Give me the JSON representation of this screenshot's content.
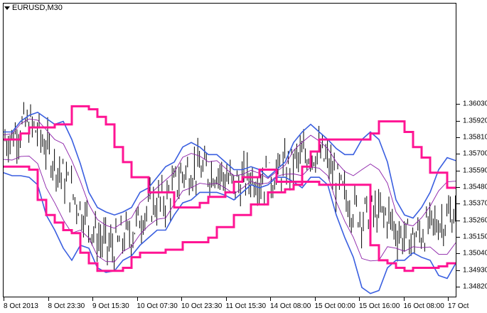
{
  "window": {
    "symbol_label": "EURUSD,M30"
  },
  "chart_data": {
    "type": "line",
    "title": "EURUSD,M30",
    "symbol": "EURUSD",
    "timeframe": "M30",
    "ylim": [
      1.3475,
      1.367
    ],
    "price_ticks": [
      "1.36030",
      "1.35920",
      "1.35810",
      "1.35700",
      "1.35590",
      "1.35480",
      "1.35370",
      "1.35260",
      "1.35150",
      "1.35040",
      "1.34930",
      "1.34820"
    ],
    "time_ticks": [
      "8 Oct 2013",
      "8 Oct 23:30",
      "9 Oct 15:30",
      "10 Oct 07:30",
      "10 Oct 23:30",
      "11 Oct 15:30",
      "14 Oct 08:00",
      "15 Oct 00:00",
      "15 Oct 16:00",
      "16 Oct 08:00",
      "17 Oct"
    ],
    "colors": {
      "price_bars": "#000000",
      "envelope_outer": "#ff1493",
      "bands_outer": "#3a5fe0",
      "bands_inner": "#8b1fa8"
    },
    "series": [
      {
        "values": [
          1.358,
          1.358,
          1.3584,
          1.3588,
          1.3588,
          1.3588,
          1.359,
          1.359,
          1.3602,
          1.3602,
          1.36,
          1.3595,
          1.359,
          1.3575,
          1.3565,
          1.3555,
          1.3555,
          1.3545,
          1.3545,
          1.3545,
          1.3535,
          1.3535,
          1.3535,
          1.3538,
          1.3542,
          1.3542,
          1.3545,
          1.3552,
          1.3555,
          1.3555,
          1.356,
          1.356,
          1.3552,
          1.3552,
          1.3552,
          1.3562,
          1.3572,
          1.358,
          1.358,
          1.358,
          1.358,
          1.358,
          1.358,
          1.3584,
          1.3592,
          1.3592,
          1.3592,
          1.3585,
          1.3575,
          1.3568,
          1.3558,
          1.3558,
          1.3548,
          1.3548
        ],
        "lower": [
          1.3562,
          1.3562,
          1.3562,
          1.356,
          1.354,
          1.353,
          1.3525,
          1.352,
          1.3518,
          1.3505,
          1.3498,
          1.3493,
          1.3493,
          1.3493,
          1.3495,
          1.3502,
          1.3505,
          1.3505,
          1.3505,
          1.3507,
          1.3507,
          1.3512,
          1.3512,
          1.3512,
          1.3515,
          1.3522,
          1.3522,
          1.353,
          1.353,
          1.3537,
          1.3537,
          1.3545,
          1.3545,
          1.3547,
          1.355,
          1.3552,
          1.3552,
          1.355,
          1.355,
          1.355,
          1.355,
          1.355,
          1.355,
          1.351,
          1.35,
          1.3498,
          1.3495,
          1.3493,
          1.3495,
          1.3495,
          1.3495,
          1.3496,
          1.3498,
          1.3498
        ]
      },
      {
        "upper": [
          1.3585,
          1.3585,
          1.3592,
          1.3596,
          1.3598,
          1.3594,
          1.359,
          1.3592,
          1.358,
          1.3564,
          1.3545,
          1.3535,
          1.3532,
          1.353,
          1.3532,
          1.3535,
          1.3545,
          1.3548,
          1.3555,
          1.3562,
          1.3565,
          1.3575,
          1.3578,
          1.3575,
          1.357,
          1.357,
          1.3565,
          1.356,
          1.356,
          1.3562,
          1.356,
          1.3555,
          1.356,
          1.3565,
          1.3578,
          1.3585,
          1.359,
          1.3585,
          1.358,
          1.3574,
          1.357,
          1.357,
          1.358,
          1.3585,
          1.358,
          1.3565,
          1.354,
          1.353,
          1.3528,
          1.3535,
          1.3545,
          1.356,
          1.3568,
          1.3566
        ],
        "lower": [
          1.3558,
          1.3556,
          1.3556,
          1.3555,
          1.355,
          1.353,
          1.352,
          1.3508,
          1.35,
          1.351,
          1.3508,
          1.3495,
          1.3492,
          1.3493,
          1.35,
          1.3503,
          1.351,
          1.3515,
          1.352,
          1.352,
          1.353,
          1.3538,
          1.354,
          1.3545,
          1.3545,
          1.3545,
          1.3543,
          1.354,
          1.3545,
          1.355,
          1.3548,
          1.355,
          1.3555,
          1.3555,
          1.3552,
          1.3548,
          1.3555,
          1.3555,
          1.355,
          1.353,
          1.3515,
          1.3502,
          1.3482,
          1.3478,
          1.348,
          1.3495,
          1.35,
          1.35,
          1.3505,
          1.3502,
          1.35,
          1.349,
          1.3488,
          1.3498
        ]
      },
      {
        "values": [
          1.358,
          1.3582,
          1.3588,
          1.359,
          1.3585,
          1.3575,
          1.3565,
          1.3555,
          1.3545,
          1.3535,
          1.3525,
          1.3515,
          1.351,
          1.3508,
          1.3515,
          1.3518,
          1.3528,
          1.3535,
          1.3538,
          1.354,
          1.3548,
          1.3558,
          1.356,
          1.356,
          1.3558,
          1.356,
          1.3555,
          1.355,
          1.3552,
          1.3556,
          1.3554,
          1.3553,
          1.3557,
          1.356,
          1.3565,
          1.3568,
          1.3572,
          1.357,
          1.3565,
          1.3552,
          1.3542,
          1.3535,
          1.353,
          1.3532,
          1.353,
          1.353,
          1.352,
          1.3515,
          1.3515,
          1.3518,
          1.3522,
          1.3525,
          1.3528,
          1.3532
        ]
      }
    ]
  }
}
